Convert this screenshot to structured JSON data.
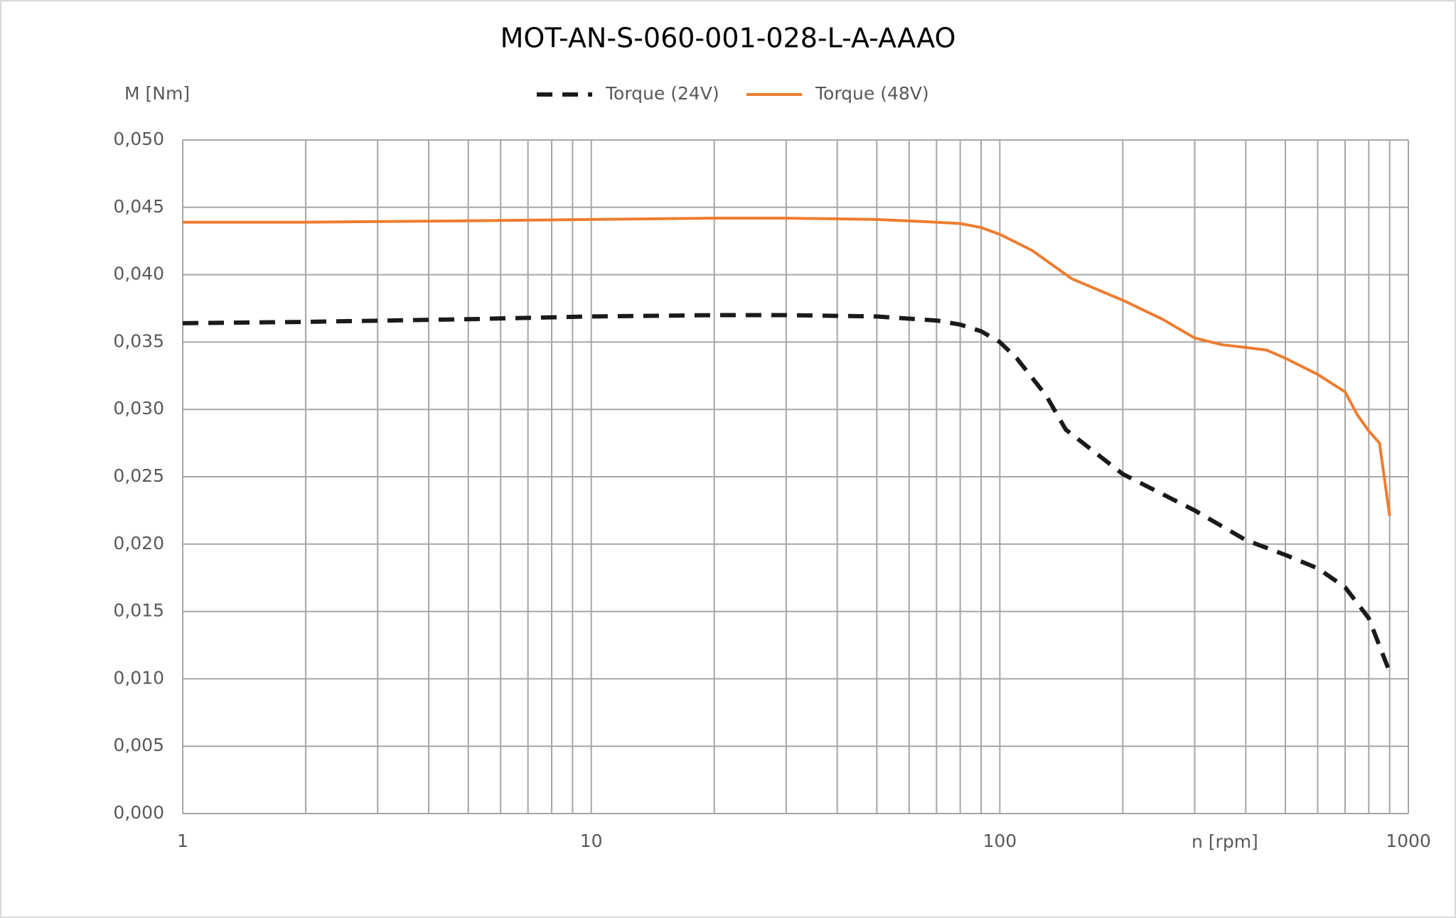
{
  "chart_data": {
    "type": "line",
    "title": "MOT-AN-S-060-001-028-L-A-AAAO",
    "y_label": "M [Nm]",
    "x_label": "n [rpm]",
    "log_x": true,
    "grid": true,
    "legend": "top",
    "xlim": [
      1,
      1000
    ],
    "xticks": [
      1,
      10,
      100,
      1000
    ],
    "xgrid": [
      2,
      3,
      4,
      5,
      6,
      7,
      8,
      9,
      20,
      30,
      40,
      50,
      60,
      70,
      80,
      90,
      200,
      300,
      400,
      500,
      600,
      700,
      800,
      900
    ],
    "ylim": [
      0,
      0.05
    ],
    "yticks": [
      {
        "value": 0,
        "label": "0,000"
      },
      {
        "value": 0.005,
        "label": "0,005"
      },
      {
        "value": 0.01,
        "label": "0,010"
      },
      {
        "value": 0.015,
        "label": "0,015"
      },
      {
        "value": 0.02,
        "label": "0,020"
      },
      {
        "value": 0.025,
        "label": "0,025"
      },
      {
        "value": 0.03,
        "label": "0,030"
      },
      {
        "value": 0.035,
        "label": "0,035"
      },
      {
        "value": 0.04,
        "label": "0,040"
      },
      {
        "value": 0.045,
        "label": "0,045"
      },
      {
        "value": 0.05,
        "label": "0,050"
      }
    ],
    "series": [
      {
        "name": "Torque (24V)",
        "color": "#1a1a1a",
        "dash": true,
        "x": [
          1,
          2,
          5,
          10,
          20,
          30,
          50,
          70,
          80,
          90,
          100,
          110,
          130,
          145,
          200,
          300,
          400,
          500,
          600,
          700,
          800,
          900
        ],
        "values": [
          0.0364,
          0.0365,
          0.0367,
          0.0369,
          0.037,
          0.037,
          0.0369,
          0.0366,
          0.0363,
          0.0358,
          0.035,
          0.0338,
          0.031,
          0.0285,
          0.0252,
          0.0225,
          0.0203,
          0.0192,
          0.0182,
          0.0168,
          0.0145,
          0.0105
        ]
      },
      {
        "name": "Torque (48V)",
        "color": "#ed7d31",
        "dash": false,
        "x": [
          1,
          2,
          5,
          10,
          20,
          30,
          50,
          70,
          80,
          90,
          100,
          120,
          150,
          200,
          250,
          300,
          350,
          400,
          450,
          500,
          600,
          700,
          750,
          800,
          850,
          900
        ],
        "values": [
          0.0439,
          0.0439,
          0.044,
          0.0441,
          0.0442,
          0.0442,
          0.0441,
          0.0439,
          0.0438,
          0.0435,
          0.043,
          0.0418,
          0.0397,
          0.0381,
          0.0367,
          0.0353,
          0.0348,
          0.0346,
          0.0344,
          0.0338,
          0.0326,
          0.0313,
          0.0296,
          0.0284,
          0.0275,
          0.0221
        ]
      }
    ]
  }
}
